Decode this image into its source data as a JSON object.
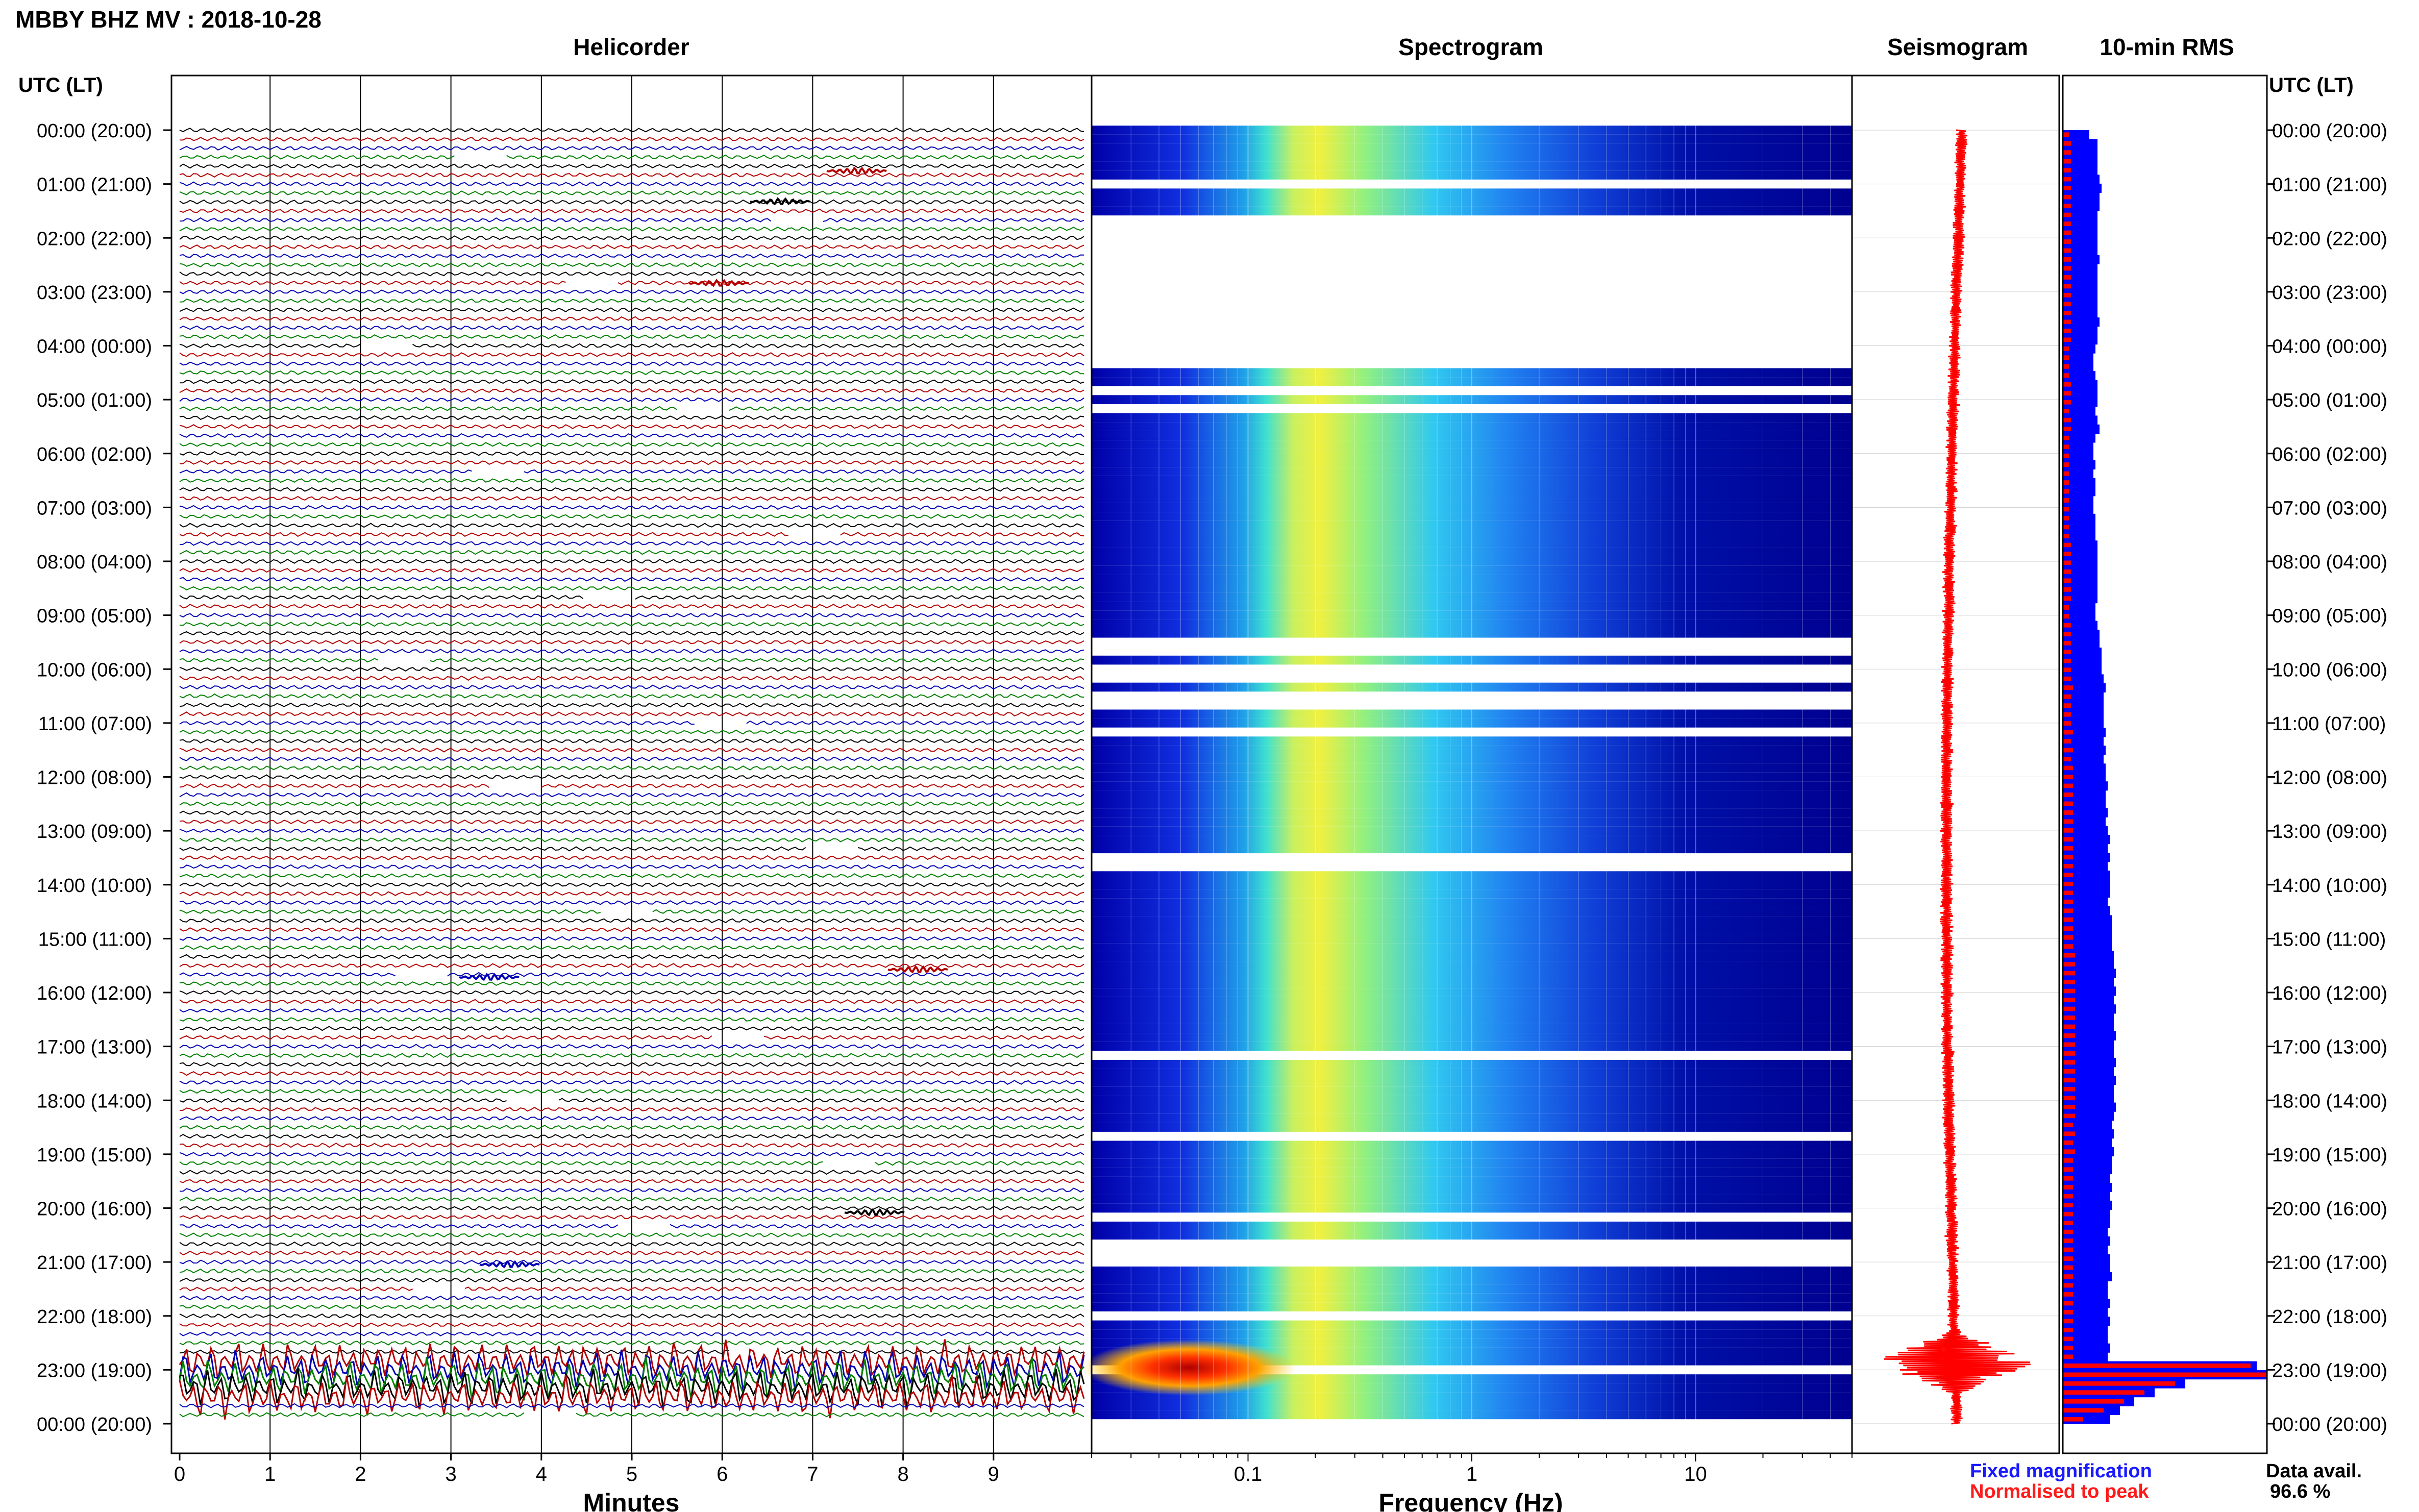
{
  "header": {
    "title": "MBBY BHZ MV : 2018-10-28",
    "utc_label": "UTC (LT)",
    "utc_label_right": "UTC (LT)"
  },
  "panels": {
    "helicorder": "Helicorder",
    "spectrogram": "Spectrogram",
    "seismogram": "Seismogram",
    "rms": "10-min RMS"
  },
  "axes": {
    "minutes_label": "Minutes",
    "frequency_label": "Frequency (Hz)",
    "minute_ticks": [
      "0",
      "1",
      "2",
      "3",
      "4",
      "5",
      "6",
      "7",
      "8",
      "9"
    ],
    "frequency_ticks": [
      {
        "label": "0.1",
        "value": 0.1
      },
      {
        "label": "1",
        "value": 1
      },
      {
        "label": "10",
        "value": 10
      }
    ],
    "frequency_range_hz": [
      0.02,
      50
    ]
  },
  "time_labels": [
    "00:00 (20:00)",
    "01:00 (21:00)",
    "02:00 (22:00)",
    "03:00 (23:00)",
    "04:00 (00:00)",
    "05:00 (01:00)",
    "06:00 (02:00)",
    "07:00 (03:00)",
    "08:00 (04:00)",
    "09:00 (05:00)",
    "10:00 (06:00)",
    "11:00 (07:00)",
    "12:00 (08:00)",
    "13:00 (09:00)",
    "14:00 (10:00)",
    "15:00 (11:00)",
    "16:00 (12:00)",
    "17:00 (13:00)",
    "18:00 (14:00)",
    "19:00 (15:00)",
    "20:00 (16:00)",
    "21:00 (17:00)",
    "22:00 (18:00)",
    "23:00 (19:00)",
    "00:00 (20:00)"
  ],
  "legend": {
    "fixed": "Fixed magnification",
    "normalised": "Normalised to peak",
    "fixed_color": "#1a1aff",
    "normalised_color": "#ff1a1a"
  },
  "availability": {
    "label": "Data avail.",
    "value": "96.6 %"
  },
  "colors": {
    "trace_cycle": [
      "#000000",
      "#b30000",
      "#0000b3",
      "#008000"
    ],
    "spectrogram_bg": "#00008f",
    "seismogram": "#ff0000",
    "rms_fixed": "#0000ff",
    "rms_normalised": "#ff0000"
  },
  "chart_data": {
    "type": "heatmap",
    "rows_per_hour": 6,
    "hours": 24,
    "gap_rows": [
      6,
      10,
      11,
      12,
      13,
      14,
      15,
      16,
      17,
      18,
      19,
      20,
      21,
      22,
      23,
      24,
      25,
      26,
      29,
      31,
      57,
      58,
      60,
      61,
      63,
      64,
      67,
      81,
      82,
      103,
      112,
      121,
      125,
      132,
      138,
      145,
      124,
      126
    ],
    "rms_fixed": [
      13,
      17,
      17,
      17,
      17,
      18,
      19,
      18,
      18,
      17,
      17,
      17,
      17,
      17,
      18,
      17,
      17,
      17,
      17,
      17,
      17,
      18,
      17,
      17,
      16,
      15,
      15,
      16,
      17,
      17,
      17,
      16,
      17,
      18,
      16,
      15,
      15,
      16,
      15,
      16,
      16,
      15,
      15,
      16,
      16,
      16,
      17,
      17,
      17,
      17,
      17,
      17,
      17,
      16,
      16,
      17,
      18,
      18,
      19,
      19,
      19,
      20,
      21,
      20,
      20,
      20,
      20,
      21,
      20,
      21,
      20,
      21,
      21,
      22,
      21,
      21,
      22,
      21,
      22,
      23,
      22,
      23,
      22,
      23,
      23,
      23,
      22,
      23,
      24,
      24,
      24,
      24,
      25,
      25,
      26,
      25,
      26,
      25,
      26,
      25,
      25,
      26,
      25,
      25,
      26,
      25,
      26,
      25,
      25,
      26,
      25,
      24,
      25,
      24,
      25,
      24,
      24,
      23,
      24,
      23,
      24,
      23,
      23,
      22,
      23,
      22,
      23,
      23,
      24,
      22,
      22,
      23,
      22,
      23,
      22,
      22,
      23,
      22,
      95,
      100,
      60,
      45,
      35,
      28,
      23
    ],
    "rms_normalised": [
      3,
      4,
      4,
      4,
      4,
      4,
      4,
      4,
      4,
      4,
      4,
      4,
      4,
      4,
      4,
      4,
      4,
      4,
      4,
      4,
      4,
      4,
      4,
      4,
      3,
      3,
      3,
      3,
      4,
      4,
      4,
      3,
      4,
      4,
      3,
      3,
      3,
      3,
      3,
      3,
      3,
      3,
      3,
      3,
      3,
      3,
      4,
      4,
      4,
      4,
      4,
      4,
      4,
      3,
      3,
      4,
      4,
      4,
      4,
      4,
      4,
      4,
      5,
      4,
      4,
      4,
      4,
      5,
      4,
      5,
      4,
      5,
      5,
      5,
      5,
      5,
      5,
      5,
      5,
      5,
      5,
      5,
      5,
      5,
      5,
      5,
      5,
      5,
      5,
      5,
      5,
      5,
      6,
      6,
      6,
      6,
      6,
      6,
      6,
      6,
      6,
      6,
      6,
      6,
      6,
      6,
      6,
      6,
      6,
      6,
      6,
      5,
      6,
      5,
      6,
      5,
      5,
      5,
      5,
      5,
      5,
      5,
      5,
      5,
      5,
      5,
      5,
      5,
      5,
      5,
      5,
      5,
      5,
      5,
      5,
      5,
      5,
      5,
      92,
      100,
      55,
      40,
      30,
      20,
      10
    ]
  }
}
